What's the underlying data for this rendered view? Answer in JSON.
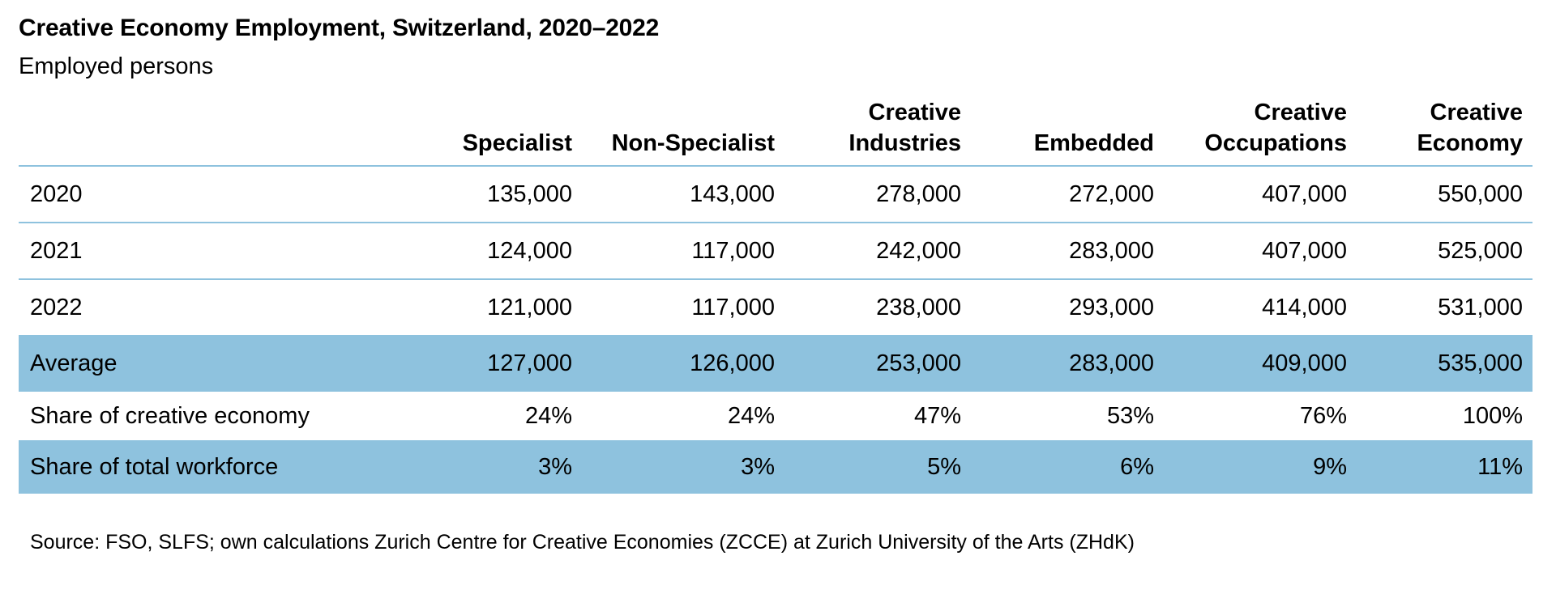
{
  "chart_data": {
    "type": "table",
    "title": "Creative Economy Employment, Switzerland, 2020–2022",
    "subtitle": "Employed persons",
    "columns": [
      "Specialist",
      "Non-Specialist",
      "Creative Industries",
      "Embedded",
      "Creative Occupations",
      "Creative Economy"
    ],
    "columns_display": [
      [
        "",
        "Specialist"
      ],
      [
        "",
        "Non-Specialist"
      ],
      [
        "Creative",
        "Industries"
      ],
      [
        "",
        "Embedded"
      ],
      [
        "Creative",
        "Occupations"
      ],
      [
        "Creative",
        "Economy"
      ]
    ],
    "rows": [
      {
        "label": "2020",
        "values": [
          "135,000",
          "143,000",
          "278,000",
          "272,000",
          "407,000",
          "550,000"
        ]
      },
      {
        "label": "2021",
        "values": [
          "124,000",
          "117,000",
          "242,000",
          "283,000",
          "407,000",
          "525,000"
        ]
      },
      {
        "label": "2022",
        "values": [
          "121,000",
          "117,000",
          "238,000",
          "293,000",
          "414,000",
          "531,000"
        ]
      },
      {
        "label": "Average",
        "values": [
          "127,000",
          "126,000",
          "253,000",
          "283,000",
          "409,000",
          "535,000"
        ]
      },
      {
        "label": "Share of creative economy",
        "values": [
          "24%",
          "24%",
          "47%",
          "53%",
          "76%",
          "100%"
        ]
      },
      {
        "label": "Share of total workforce",
        "values": [
          "3%",
          "3%",
          "5%",
          "6%",
          "9%",
          "11%"
        ]
      }
    ],
    "source": "Source: FSO, SLFS; own calculations Zurich Centre for Creative Economies (ZCCE) at Zurich University of the Arts (ZHdK)"
  },
  "colors": {
    "accent": "#8ec2de",
    "text": "#000000",
    "background": "#ffffff"
  }
}
